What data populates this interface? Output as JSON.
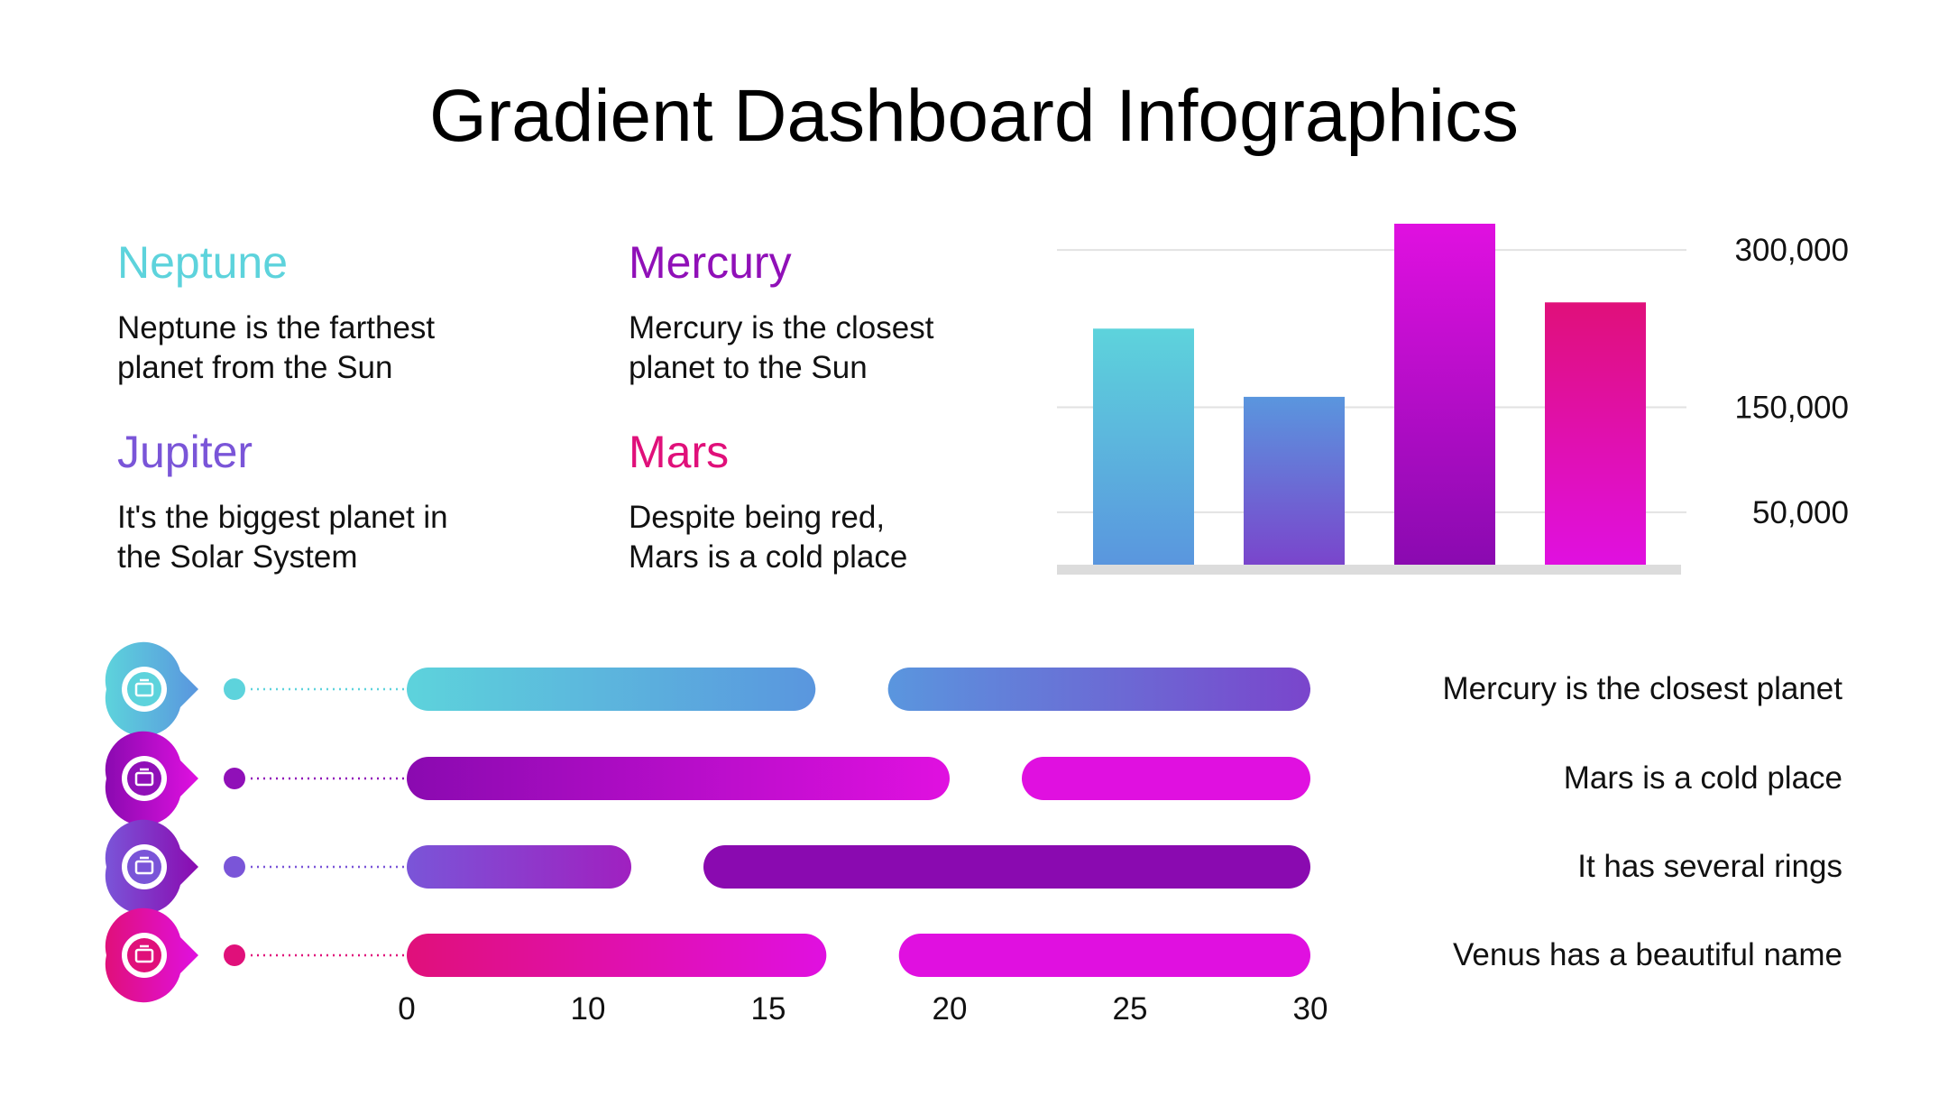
{
  "title": "Gradient Dashboard Infographics",
  "planets": [
    {
      "name": "Neptune",
      "desc": "Neptune is the farthest\nplanet from the Sun",
      "color": "#5dd3dc"
    },
    {
      "name": "Mercury",
      "desc": "Mercury is the closest\nplanet to the Sun",
      "color": "#9010b8"
    },
    {
      "name": "Jupiter",
      "desc": "It's the biggest planet in\nthe Solar System",
      "color": "#7a55d8"
    },
    {
      "name": "Mars",
      "desc": "Despite being red,\nMars is a cold place",
      "color": "#e0107a"
    }
  ],
  "chart_data": [
    {
      "type": "bar",
      "categories": [
        "",
        "",
        "",
        ""
      ],
      "values": [
        225000,
        160000,
        325000,
        250000
      ],
      "y_ticks": [
        {
          "value": 50000,
          "label": "50,000"
        },
        {
          "value": 150000,
          "label": "150,000"
        },
        {
          "value": 300000,
          "label": "300,000"
        }
      ],
      "ylim": [
        0,
        325000
      ],
      "y_axis_side": "right",
      "grid": true,
      "gradients": [
        [
          "#5dd3dc",
          "#5a96de"
        ],
        [
          "#5a96de",
          "#7a45cc"
        ],
        [
          "#e010e0",
          "#8a0ab0"
        ],
        [
          "#e0107a",
          "#e010e0"
        ]
      ]
    },
    {
      "type": "bar",
      "orientation": "horizontal-range",
      "x_ticks": [
        0,
        10,
        15,
        20,
        25,
        30
      ],
      "rows": [
        {
          "label": "Mercury is the closest planet",
          "icon": "briefcase-icon",
          "color": "#5dd3dc",
          "pin_gradient": [
            "#5dd3dc",
            "#5a96de"
          ],
          "segments": [
            {
              "start": 0,
              "end": 16.3,
              "colors": [
                "#5dd3dc",
                "#5a96de"
              ]
            },
            {
              "start": 18.3,
              "end": 30,
              "colors": [
                "#5a96de",
                "#7a45cc"
              ]
            }
          ]
        },
        {
          "label": "Mars is a cold place",
          "icon": "worker-icon",
          "color": "#9010b8",
          "pin_gradient": [
            "#8a0ab0",
            "#e010e0"
          ],
          "segments": [
            {
              "start": 0,
              "end": 20,
              "colors": [
                "#8a0ab0",
                "#e010e0"
              ]
            },
            {
              "start": 22,
              "end": 30,
              "colors": [
                "#e010e0",
                "#e010e0"
              ]
            }
          ]
        },
        {
          "label": "It has several rings",
          "icon": "car-icon",
          "color": "#7a55d8",
          "pin_gradient": [
            "#7a55d8",
            "#8a0ab0"
          ],
          "segments": [
            {
              "start": 0,
              "end": 11.2,
              "colors": [
                "#7a55d8",
                "#a020c0"
              ]
            },
            {
              "start": 13.2,
              "end": 30,
              "colors": [
                "#8a0ab0",
                "#8a0ab0"
              ]
            }
          ]
        },
        {
          "label": "Venus has a beautiful name",
          "icon": "person-icon",
          "color": "#e0107a",
          "pin_gradient": [
            "#e0107a",
            "#e010e0"
          ],
          "segments": [
            {
              "start": 0,
              "end": 16.6,
              "colors": [
                "#e0107a",
                "#e010e0"
              ]
            },
            {
              "start": 18.6,
              "end": 30,
              "colors": [
                "#e010e0",
                "#e010e0"
              ]
            }
          ]
        }
      ]
    }
  ]
}
